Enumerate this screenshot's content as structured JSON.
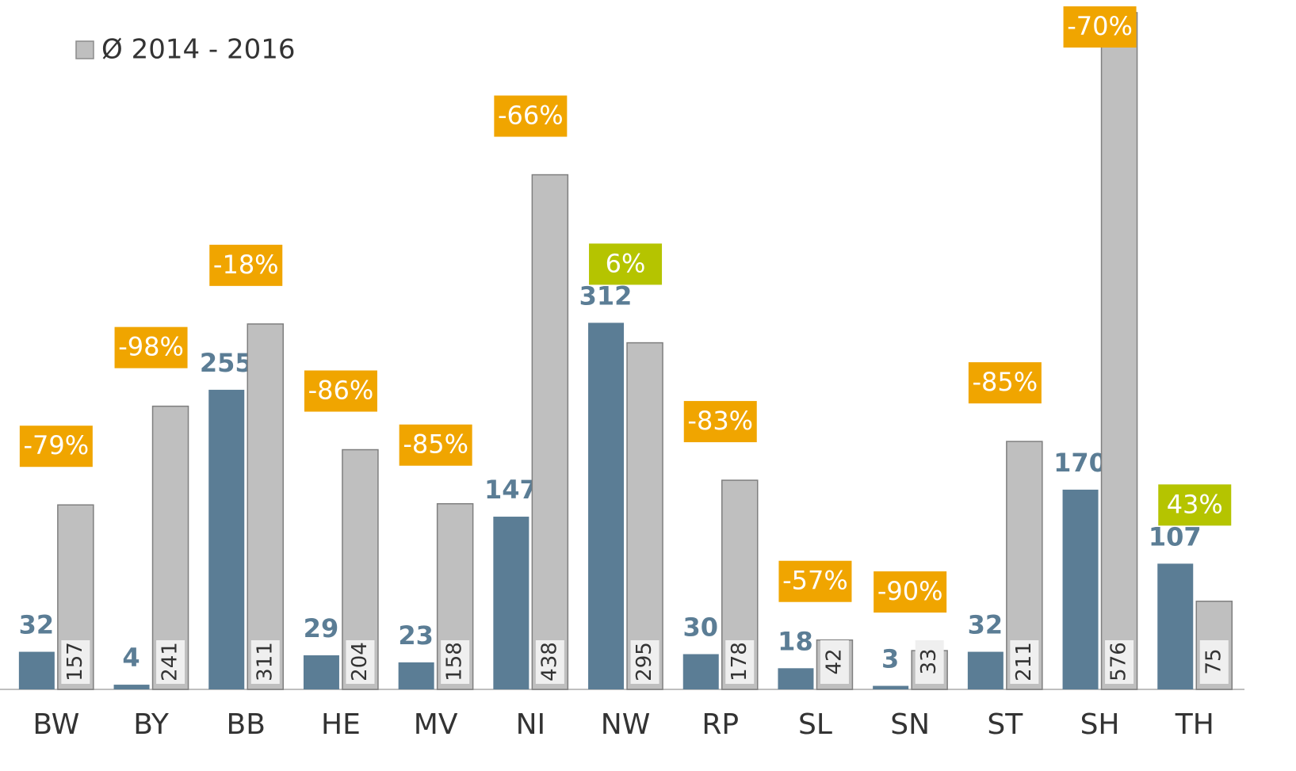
{
  "chart_data": {
    "type": "bar",
    "categories": [
      "BW",
      "BY",
      "BB",
      "HE",
      "MV",
      "NI",
      "NW",
      "RP",
      "SL",
      "SN",
      "ST",
      "SH",
      "TH"
    ],
    "series": [
      {
        "color": "#5b7d95",
        "values": [
          32,
          4,
          255,
          29,
          23,
          147,
          312,
          30,
          18,
          3,
          32,
          170,
          107
        ]
      },
      {
        "name": "Ø 2014 - 2016",
        "color": "#bfbfbf",
        "values": [
          157,
          241,
          311,
          204,
          158,
          438,
          295,
          178,
          42,
          33,
          211,
          576,
          75
        ]
      }
    ],
    "changes": {
      "values": [
        -79,
        -98,
        -18,
        -86,
        -85,
        -66,
        6,
        -83,
        -57,
        -90,
        -85,
        -70,
        43
      ],
      "value_labels": [
        "-79%",
        "-98%",
        "-18%",
        "-86%",
        "-85%",
        "-66%",
        "6%",
        "-83%",
        "-57%",
        "-90%",
        "-85%",
        "-70%",
        "43%"
      ],
      "negative_color": "#f0a500",
      "positive_color": "#b5c400"
    },
    "ylim": [
      0,
      580
    ],
    "legend": "top-left"
  }
}
